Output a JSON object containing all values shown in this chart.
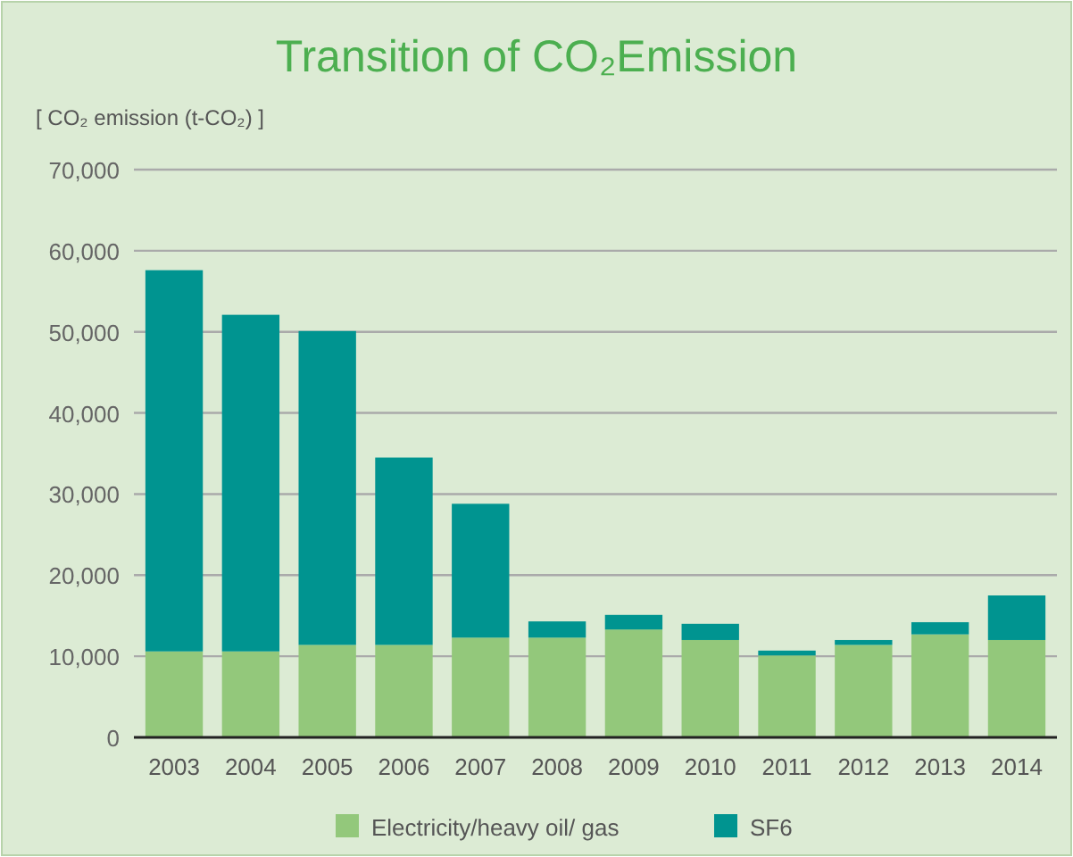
{
  "chart_data": {
    "type": "bar",
    "title": "Transition of CO₂Emission",
    "ylabel": "[ CO₂ emission (t-CO₂) ]",
    "categories": [
      "2003",
      "2004",
      "2005",
      "2006",
      "2007",
      "2008",
      "2009",
      "2010",
      "2011",
      "2012",
      "2013",
      "2014"
    ],
    "stacked": true,
    "series": [
      {
        "name": "Electricity/heavy oil/ gas",
        "color": "#93c87b",
        "values": [
          10600,
          10600,
          11400,
          11400,
          12300,
          12300,
          13300,
          12000,
          10100,
          11400,
          12700,
          12000
        ]
      },
      {
        "name": "SF6",
        "color": "#009490",
        "values": [
          47000,
          41500,
          38700,
          23100,
          16500,
          2000,
          1800,
          2000,
          600,
          600,
          1500,
          5500
        ]
      }
    ],
    "ylim": [
      0,
      70000
    ],
    "yticks": [
      {
        "value": 0,
        "label": "0"
      },
      {
        "value": 10000,
        "label": "10,000"
      },
      {
        "value": 20000,
        "label": "20,000"
      },
      {
        "value": 30000,
        "label": "30,000"
      },
      {
        "value": 40000,
        "label": "40,000"
      },
      {
        "value": 50000,
        "label": "50,000"
      },
      {
        "value": 60000,
        "label": "60,000"
      },
      {
        "value": 70000,
        "label": "70,000"
      }
    ],
    "grid": "y",
    "legend": "bottom"
  }
}
